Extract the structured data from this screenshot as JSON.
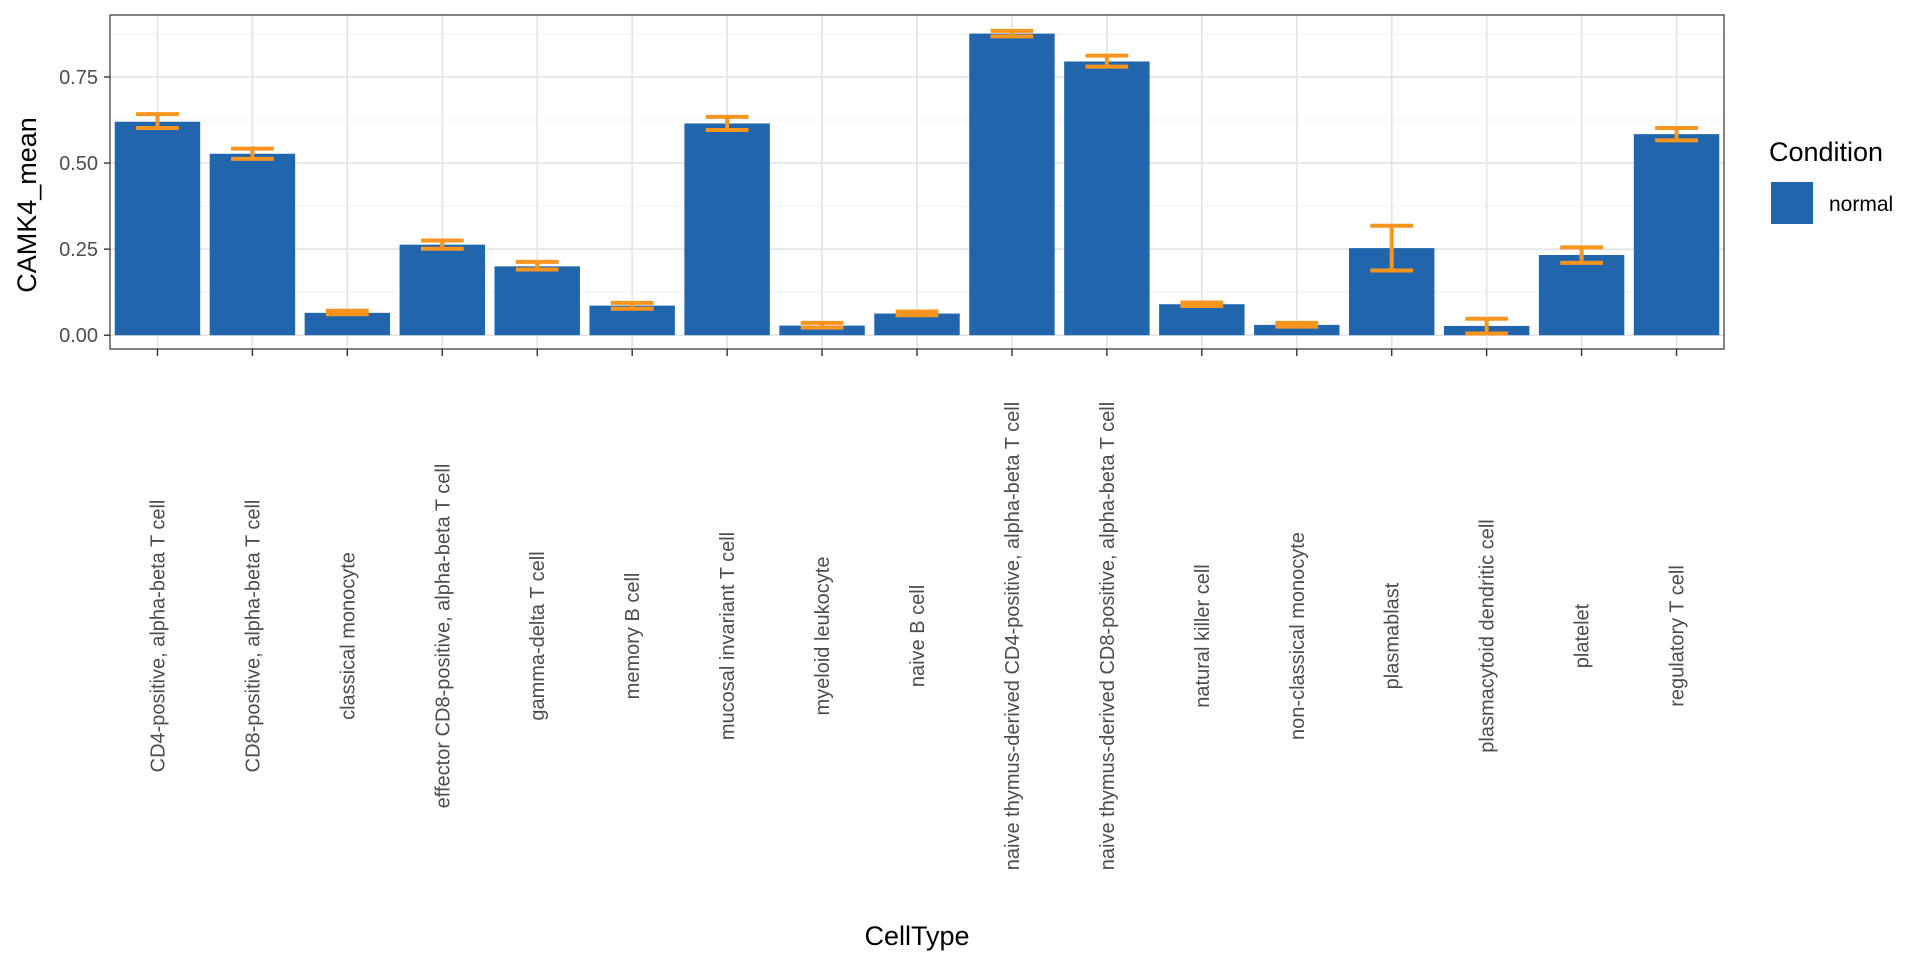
{
  "chart_data": {
    "type": "bar",
    "xlabel": "CellType",
    "ylabel": "CAMK4_mean",
    "ylim": [
      -0.04,
      0.93
    ],
    "yticks": [
      0.0,
      0.25,
      0.5,
      0.75
    ],
    "ytick_labels": [
      "0.00",
      "0.25",
      "0.50",
      "0.75"
    ],
    "grid": true,
    "legend": {
      "title": "Condition",
      "position": "right"
    },
    "categories": [
      "CD4-positive, alpha-beta T cell",
      "CD8-positive, alpha-beta T cell",
      "classical monocyte",
      "effector CD8-positive, alpha-beta T cell",
      "gamma-delta T cell",
      "memory B cell",
      "mucosal invariant T cell",
      "myeloid leukocyte",
      "naive B cell",
      "naive thymus-derived CD4-positive, alpha-beta T cell",
      "naive thymus-derived CD8-positive, alpha-beta T cell",
      "natural killer cell",
      "non-classical monocyte",
      "plasmablast",
      "plasmacytoid dendritic cell",
      "platelet",
      "regulatory T cell"
    ],
    "series": [
      {
        "name": "normal",
        "color": "#2166ac",
        "values": [
          0.62,
          0.527,
          0.065,
          0.263,
          0.2,
          0.086,
          0.615,
          0.028,
          0.063,
          0.876,
          0.795,
          0.09,
          0.03,
          0.253,
          0.027,
          0.233,
          0.584
        ],
        "error_low": [
          0.602,
          0.512,
          0.061,
          0.251,
          0.191,
          0.077,
          0.596,
          0.022,
          0.058,
          0.868,
          0.78,
          0.085,
          0.025,
          0.188,
          0.005,
          0.21,
          0.566
        ],
        "error_high": [
          0.642,
          0.542,
          0.071,
          0.275,
          0.213,
          0.094,
          0.634,
          0.036,
          0.069,
          0.884,
          0.812,
          0.095,
          0.036,
          0.318,
          0.048,
          0.255,
          0.602
        ]
      }
    ],
    "errorbar_color": "#f7951e"
  }
}
